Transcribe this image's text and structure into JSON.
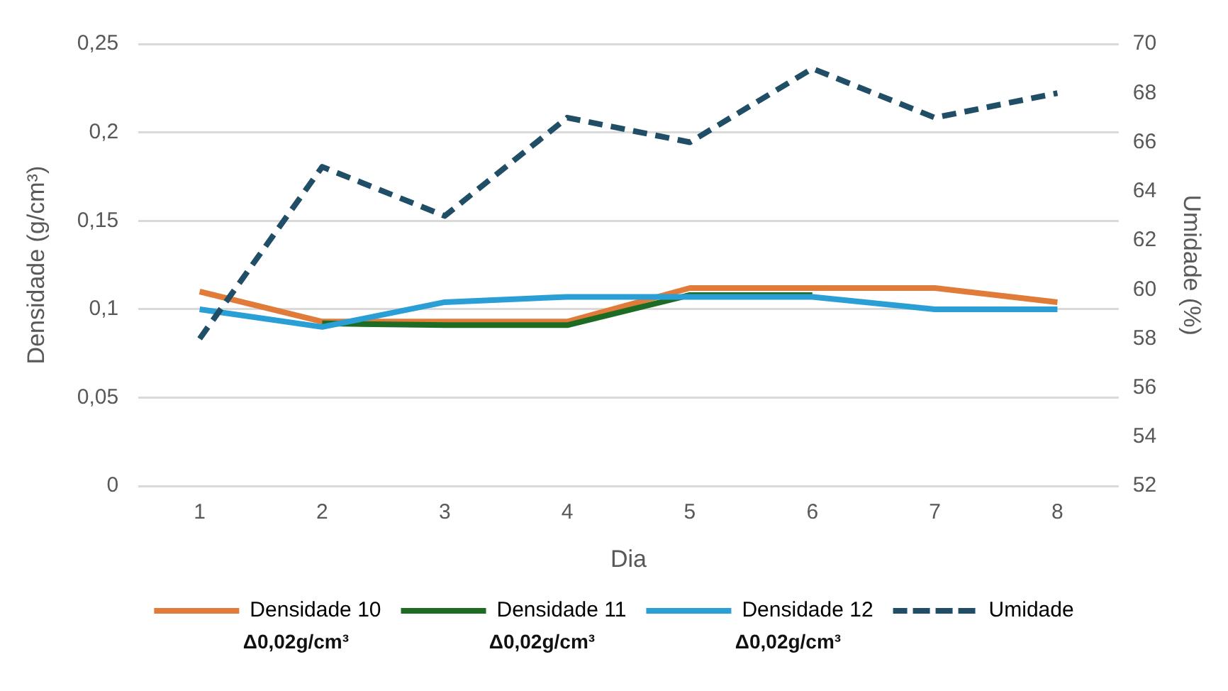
{
  "chart_data": {
    "type": "line",
    "xlabel": "Dia",
    "ylabel": "Densidade (g/cm³)",
    "y2label": "Umidade (%)",
    "categories": [
      "1",
      "2",
      "3",
      "4",
      "5",
      "6",
      "7",
      "8"
    ],
    "series": [
      {
        "name": "Densidade 10",
        "color": "#e07b39",
        "values": [
          0.11,
          0.093,
          0.093,
          0.093,
          0.112,
          0.112,
          0.112,
          0.104
        ]
      },
      {
        "name": "Densidade 11",
        "color": "#1e6b24",
        "values": [
          null,
          0.092,
          0.091,
          0.091,
          0.108,
          0.108,
          null,
          null
        ]
      },
      {
        "name": "Densidade 12",
        "color": "#2a9fd6",
        "values": [
          0.1,
          0.09,
          0.104,
          0.107,
          0.107,
          0.107,
          0.1,
          0.1
        ]
      },
      {
        "name": "Umidade",
        "color": "#1f4e66",
        "axis": "y2",
        "line_style": "dashed",
        "values": [
          58,
          65,
          63,
          67,
          66,
          69,
          67,
          68
        ]
      }
    ],
    "ylim": [
      0,
      0.25
    ],
    "yticks": [
      0,
      {
        "value": 0.05,
        "label": "0,05"
      },
      {
        "value": 0.1,
        "label": "0,1"
      },
      {
        "value": 0.15,
        "label": "0,15"
      },
      {
        "value": 0.2,
        "label": "0,2"
      },
      {
        "value": 0.25,
        "label": "0,25"
      }
    ],
    "y2lim": [
      52,
      70
    ],
    "y2ticks": [
      52,
      54,
      56,
      58,
      60,
      62,
      64,
      66,
      68,
      70
    ],
    "grid": "y",
    "legend": "bottom",
    "marker": "none",
    "line_style": "solid",
    "annotations": [
      "Δ0,02g/cm³",
      "Δ0,02g/cm³",
      "Δ0,02g/cm³"
    ]
  }
}
